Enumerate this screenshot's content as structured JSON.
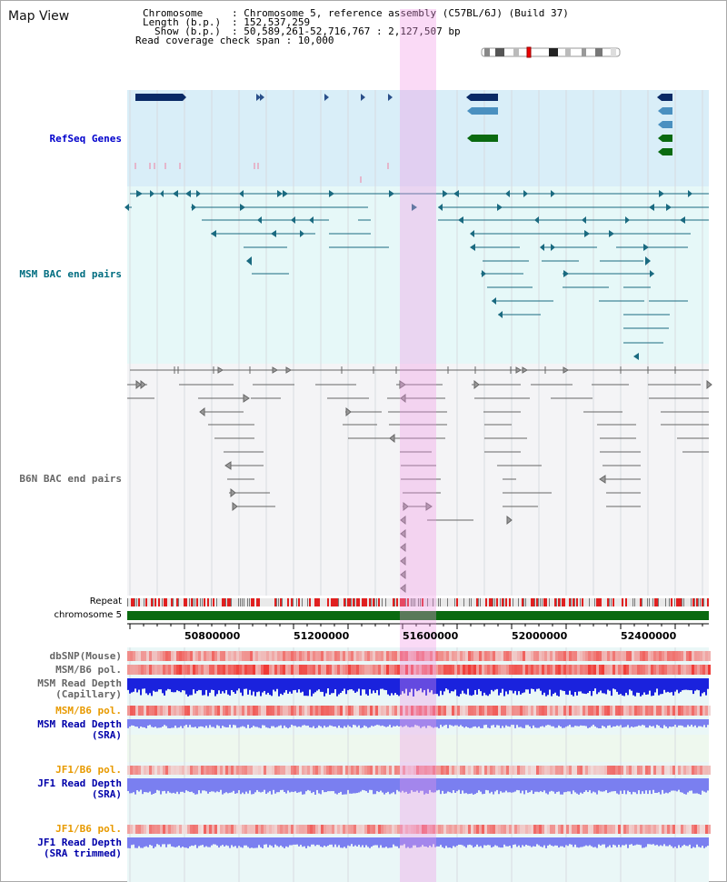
{
  "title": "Map View",
  "info": {
    "chromosome_key": "Chromosome",
    "chromosome_val": ": Chromosome 5, reference assembly (C57BL/6J) (Build 37)",
    "length_key": "Length (b.p.)",
    "length_val": ": 152,537,259",
    "show_key": "Show (b.p.)",
    "show_val": ": 50,589,261-52,716,767 : 2,127,507 bp",
    "coverage": "Read coverage check span : 10,000"
  },
  "tracks": {
    "refseq": "RefSeq Genes",
    "msm_bac": "MSM BAC end pairs",
    "b6n_bac": "B6N BAC end pairs",
    "repeat": "Repeat",
    "chromosome": "chromosome 5",
    "dbsnp": "dbSNP(Mouse)",
    "msm_b6_pol_1": "MSM/B6 pol.",
    "msm_read_depth_cap_1": "MSM Read Depth",
    "msm_read_depth_cap_2": "(Capillary)",
    "msm_b6_pol_2": "MSM/B6 pol.",
    "msm_read_depth_sra_1": "MSM Read Depth",
    "msm_read_depth_sra_2": "(SRA)",
    "jf1_b6_pol_1": "JF1/B6 pol.",
    "jf1_read_depth_1": "JF1 Read Depth",
    "jf1_read_depth_2": "(SRA)",
    "jf1_b6_pol_2": "JF1/B6 pol.",
    "jf1_read_depth_trim_1": "JF1 Read Depth",
    "jf1_read_depth_trim_2": "(SRA trimmed)"
  },
  "ruler": {
    "ticks": [
      "50800000",
      "51200000",
      "51600000",
      "52000000",
      "52400000"
    ]
  },
  "colors": {
    "refseq_label": "#0000cc",
    "msm_label": "#006d80",
    "b6n_label": "#666666",
    "orange_label": "#e89a00",
    "blue_label": "#0000aa",
    "highlight": "#f0b0ea"
  }
}
